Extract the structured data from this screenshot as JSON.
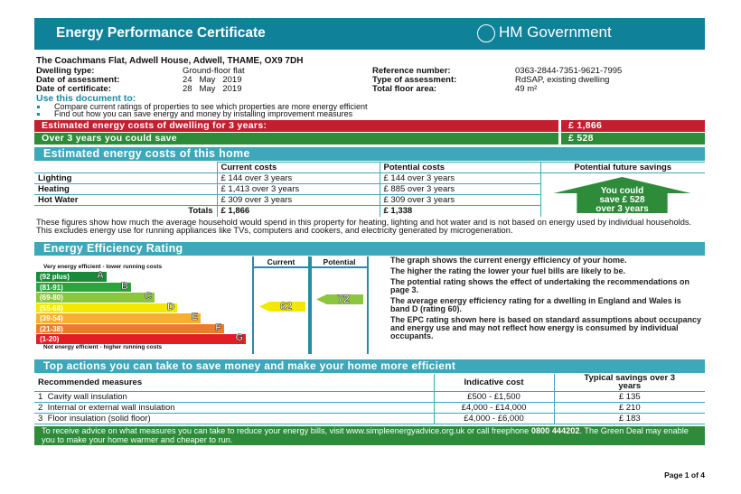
{
  "header": {
    "title": "Energy Performance Certificate",
    "logo_text": "HM Government"
  },
  "address": "The Coachmans Flat, Adwell House, Adwell, THAME, OX9 7DH",
  "details": [
    {
      "label": "Dwelling type:",
      "value": "Ground-floor flat"
    },
    {
      "label": "Date of assessment:",
      "value": "24   May   2019"
    },
    {
      "label": "Date of certificate:",
      "value": "28   May   2019"
    },
    {
      "label": "Reference number:",
      "value": "0363-2844-7351-9621-7995"
    },
    {
      "label": "Type of assessment:",
      "value": "RdSAP, existing dwelling"
    },
    {
      "label": "Total floor area:",
      "value": "49 m²"
    }
  ],
  "use_doc": {
    "title": "Use this document to:",
    "bullets": [
      "Compare current ratings of properties to see which properties are more energy efficient",
      "Find out how you can save energy and money by installing improvement measures"
    ]
  },
  "summary": {
    "cost_label": "Estimated energy costs of dwelling for 3 years:",
    "cost_value": "£ 1,866",
    "save_label": "Over 3 years you could save",
    "save_value": "£ 528",
    "red": "#c41f30",
    "green": "#2e8b3a"
  },
  "costs": {
    "title": "Estimated energy costs of this home",
    "headers": [
      "Current costs",
      "Potential costs",
      "Potential future savings"
    ],
    "rows": [
      {
        "label": "Lighting",
        "current": "£ 144 over 3 years",
        "potential": "£ 144 over 3 years"
      },
      {
        "label": "Heating",
        "current": "£ 1,413 over 3 years",
        "potential": "£ 885 over 3 years"
      },
      {
        "label": "Hot Water",
        "current": "£ 309 over 3 years",
        "potential": "£ 309 over 3 years"
      }
    ],
    "totals": {
      "label": "Totals",
      "current": "£ 1,866",
      "potential": "£ 1,338"
    },
    "savings_arrow": [
      "You could",
      "save £ 528",
      "over 3 years"
    ]
  },
  "note": "These figures show how much the average household would spend in this property for heating, lighting and hot water and is not based on energy used by individual households. This excludes energy use for running appliances like TVs, computers and cookers, and electricity generated by microgeneration.",
  "rating": {
    "title": "Energy Efficiency Rating",
    "top": "Very energy efficient - lower running costs",
    "bottom": "Not energy efficient - higher running costs",
    "current_label": "Current",
    "potential_label": "Potential",
    "current": "62",
    "potential": "72",
    "bands": [
      {
        "range": "(92 plus)",
        "letter": "A",
        "color": "#1a8a3a"
      },
      {
        "range": "(81-91)",
        "letter": "B",
        "color": "#2ba43c"
      },
      {
        "range": "(69-80)",
        "letter": "C",
        "color": "#8cc63f"
      },
      {
        "range": "(55-68)",
        "letter": "D",
        "color": "#f5e800"
      },
      {
        "range": "(39-54)",
        "letter": "E",
        "color": "#f6b030"
      },
      {
        "range": "(21-38)",
        "letter": "F",
        "color": "#ee7a2b"
      },
      {
        "range": "(1-20)",
        "letter": "G",
        "color": "#e21d24"
      }
    ],
    "text": [
      "The graph shows the current energy efficiency of your home.",
      "The higher the rating the lower your fuel bills are likely to be.",
      "The potential rating shows the effect of undertaking the recommendations on page 3.",
      "The average energy efficiency rating for a dwelling in England and Wales is band D (rating 60).",
      "The EPC rating shown here is based on standard assumptions about occupancy and energy use and may not reflect how energy is consumed by individual occupants."
    ]
  },
  "actions": {
    "title": "Top actions you can take to save money and make your home more efficient",
    "headers": [
      "Recommended measures",
      "Indicative cost",
      "Typical savings over 3 years"
    ],
    "rows": [
      {
        "n": "1",
        "measure": "Cavity wall insulation",
        "cost": "£500 - £1,500",
        "saving": "£ 135"
      },
      {
        "n": "2",
        "measure": "Internal or external wall insulation",
        "cost": "£4,000 - £14,000",
        "saving": "£ 210"
      },
      {
        "n": "3",
        "measure": "Floor insulation (solid floor)",
        "cost": "£4,000 - £6,000",
        "saving": "£ 183"
      }
    ]
  },
  "advice": {
    "pre": "To receive advice on what measures you can take to reduce your energy bills, visit www.simpleenergyadvice.org.uk or call freephone ",
    "phone": "0800 444202",
    "post": ". The Green Deal may enable you to make your home warmer and cheaper to run."
  },
  "page": "Page 1 of 4"
}
